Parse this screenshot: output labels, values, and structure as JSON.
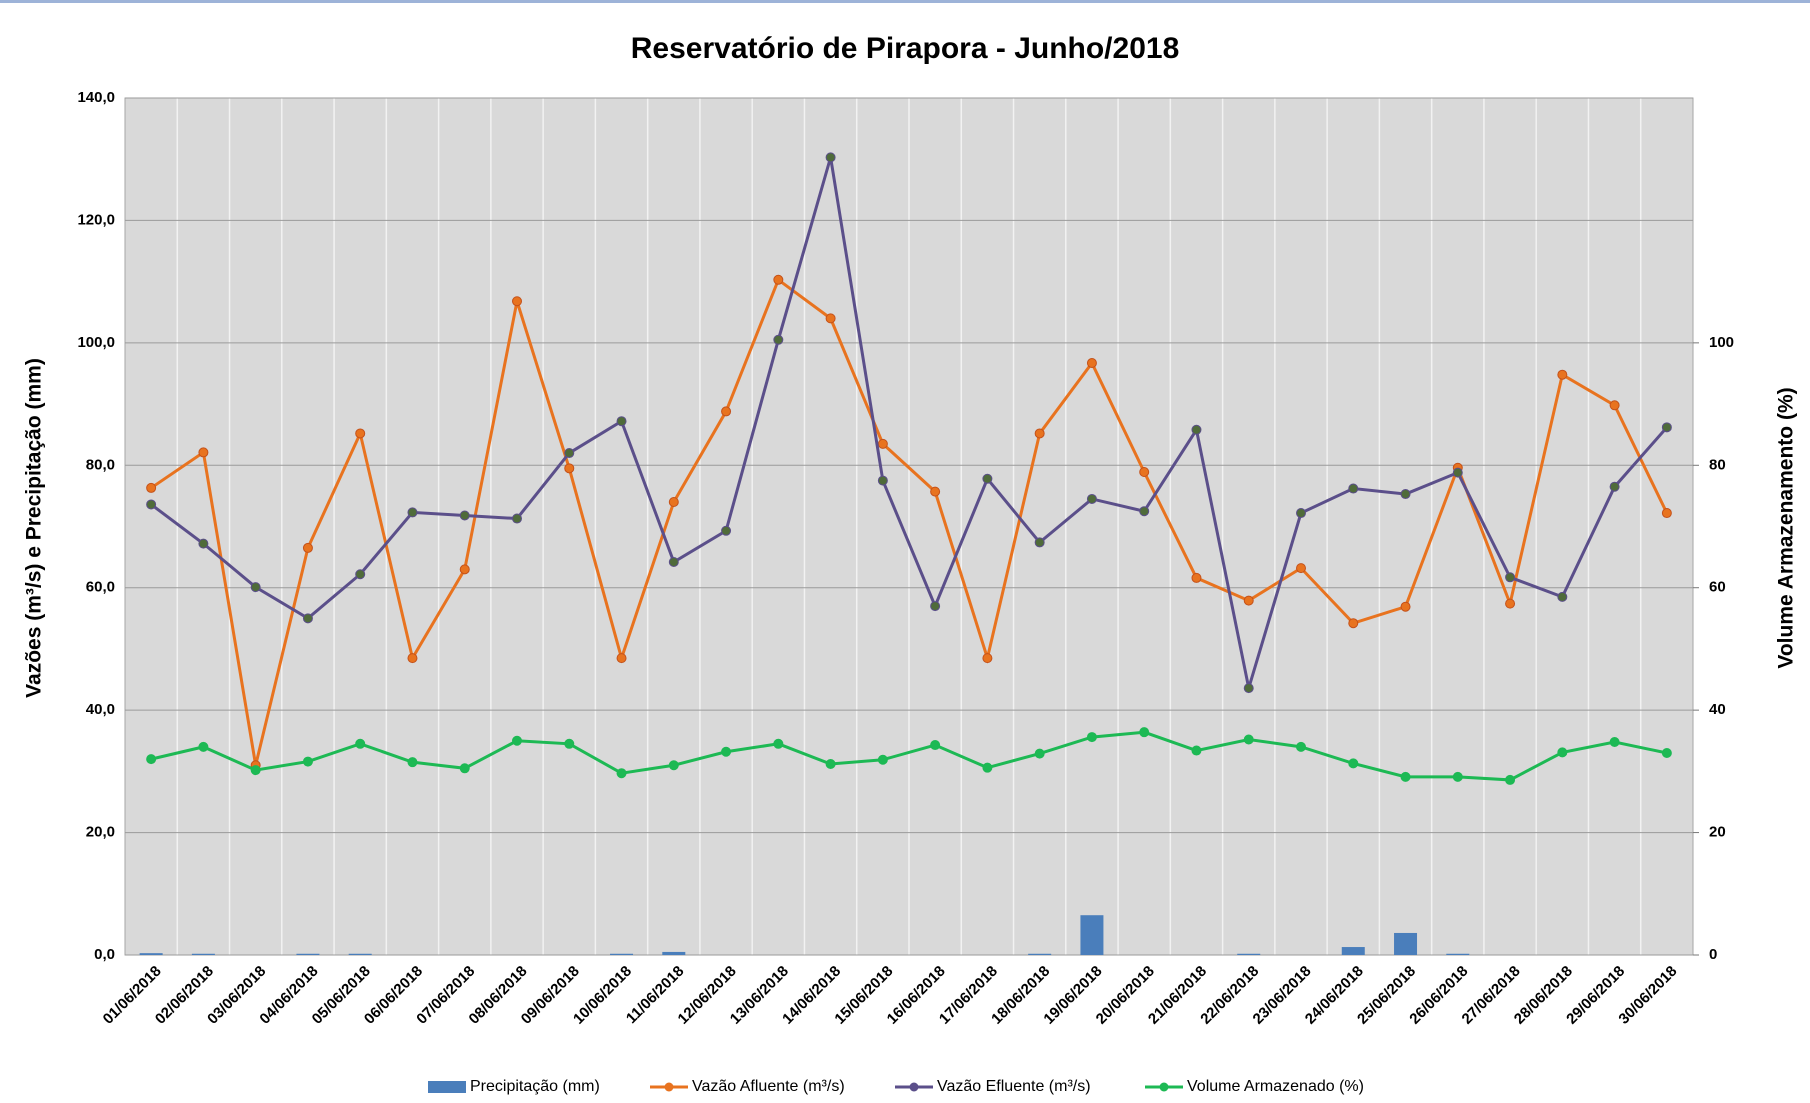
{
  "chart_data": {
    "type": "line",
    "title": "Reservatório de Pirapora - Junho/2018",
    "ylabel": "Vazões (m³/s) e Precipitação (mm)",
    "y2label": "Volume Armazenamento (%)",
    "categories": [
      "01/06/2018",
      "02/06/2018",
      "03/06/2018",
      "04/06/2018",
      "05/06/2018",
      "06/06/2018",
      "07/06/2018",
      "08/06/2018",
      "09/06/2018",
      "10/06/2018",
      "11/06/2018",
      "12/06/2018",
      "13/06/2018",
      "14/06/2018",
      "15/06/2018",
      "16/06/2018",
      "17/06/2018",
      "18/06/2018",
      "19/06/2018",
      "20/06/2018",
      "21/06/2018",
      "22/06/2018",
      "23/06/2018",
      "24/06/2018",
      "25/06/2018",
      "26/06/2018",
      "27/06/2018",
      "28/06/2018",
      "29/06/2018",
      "30/06/2018"
    ],
    "series": [
      {
        "name": "Precipitação (mm)",
        "type": "bar",
        "color": "#4a7ebb",
        "values": [
          0.3,
          0.2,
          0,
          0.2,
          0.2,
          0,
          0,
          0,
          0,
          0.2,
          0.5,
          0,
          0,
          0,
          0,
          0,
          0,
          0.2,
          6.5,
          0,
          0,
          0.2,
          0,
          1.3,
          3.6,
          0.2,
          0,
          0,
          0,
          0
        ]
      },
      {
        "name": "Vazão Afluente (m³/s)",
        "type": "line",
        "color": "#e8731f",
        "values": [
          76.3,
          82.1,
          31,
          66.5,
          85.2,
          48.5,
          63,
          106.8,
          79.5,
          48.5,
          74,
          88.8,
          110.3,
          104,
          83.5,
          75.7,
          48.5,
          85.2,
          96.7,
          78.9,
          61.6,
          57.9,
          63.2,
          54.2,
          56.9,
          79.6,
          57.4,
          94.8,
          89.8,
          72.2
        ]
      },
      {
        "name": "Vazão Efluente (m³/s)",
        "type": "line",
        "color": "#5b4f8a",
        "values": [
          73.6,
          67.2,
          60.1,
          55,
          62.2,
          72.3,
          71.8,
          71.3,
          82,
          87.2,
          64.2,
          69.3,
          100.5,
          130.3,
          77.5,
          57,
          77.8,
          67.4,
          74.5,
          72.5,
          85.8,
          43.6,
          72.2,
          76.2,
          75.3,
          78.8,
          61.7,
          58.5,
          76.5,
          86.2
        ]
      },
      {
        "name": "Volume Armazenado (%)",
        "type": "line",
        "axis": "y2",
        "color": "#1db954",
        "values": [
          32,
          34,
          30.2,
          31.6,
          34.5,
          31.5,
          30.5,
          35,
          34.5,
          29.7,
          31,
          33.2,
          34.5,
          31.2,
          31.9,
          34.3,
          30.6,
          32.9,
          35.6,
          36.4,
          33.4,
          35.2,
          34,
          31.3,
          29.1,
          29.1,
          28.6,
          33.1,
          34.8,
          33
        ]
      }
    ],
    "ylim": [
      0,
      140
    ],
    "yticks": [
      {
        "value": 0,
        "label": "0,0"
      },
      {
        "value": 20,
        "label": "20,0"
      },
      {
        "value": 40,
        "label": "40,0"
      },
      {
        "value": 60,
        "label": "60,0"
      },
      {
        "value": 80,
        "label": "80,0"
      },
      {
        "value": 100,
        "label": "100,0"
      },
      {
        "value": 120,
        "label": "120,0"
      },
      {
        "value": 140,
        "label": "140,0"
      }
    ],
    "y2lim": [
      0,
      140
    ],
    "y2ticks": [
      0,
      20,
      40,
      60,
      80,
      100
    ],
    "grid": true,
    "legend": "bottom"
  }
}
